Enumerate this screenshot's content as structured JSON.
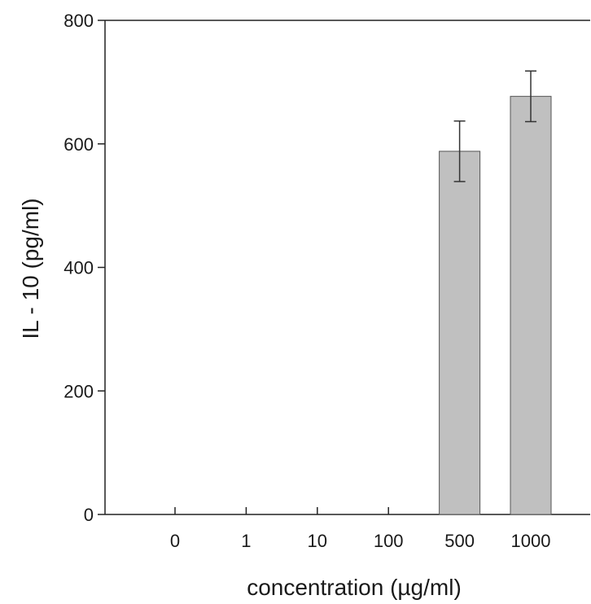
{
  "chart_data": {
    "type": "bar",
    "title": "",
    "xlabel": "concentration (µg/ml)",
    "ylabel": "IL - 10 (pg/ml)",
    "categories": [
      "0",
      "1",
      "10",
      "100",
      "500",
      "1000"
    ],
    "values": [
      0,
      0,
      0,
      0,
      588,
      677
    ],
    "errors": [
      0,
      0,
      0,
      0,
      49,
      41
    ],
    "ylim": [
      0,
      800
    ],
    "yticks": [
      0,
      200,
      400,
      600,
      800
    ],
    "grid": false,
    "bar_color": "#c0c0c0",
    "bar_edge_color": "#555555",
    "axis_color": "#222222"
  }
}
